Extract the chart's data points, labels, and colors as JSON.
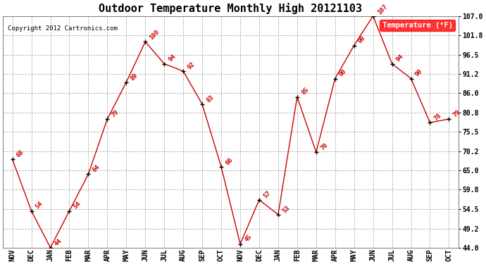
{
  "months": [
    "NOV",
    "DEC",
    "JAN",
    "FEB",
    "MAR",
    "APR",
    "MAY",
    "JUN",
    "JUL",
    "AUG",
    "SEP",
    "OCT",
    "NOV",
    "DEC",
    "JAN",
    "FEB",
    "MAR",
    "APR",
    "MAY",
    "JUN",
    "JUL",
    "AUG",
    "SEP",
    "OCT"
  ],
  "values": [
    68,
    54,
    44,
    54,
    64,
    79,
    89,
    100,
    94,
    92,
    83,
    66,
    45,
    57,
    53,
    85,
    70,
    90,
    99,
    107,
    94,
    90,
    78,
    79
  ],
  "title": "Outdoor Temperature Monthly High 20121103",
  "yticks": [
    44.0,
    49.2,
    54.5,
    59.8,
    65.0,
    70.2,
    75.5,
    80.8,
    86.0,
    91.2,
    96.5,
    101.8,
    107.0
  ],
  "line_color": "#cc0000",
  "marker_color": "#000000",
  "bg_color": "#ffffff",
  "grid_color": "#b0b0b0",
  "copyright_text": "Copyright 2012 Cartronics.com",
  "legend_label": "Temperature (°F)",
  "title_fontsize": 11,
  "tick_fontsize": 7,
  "annot_fontsize": 6.5
}
